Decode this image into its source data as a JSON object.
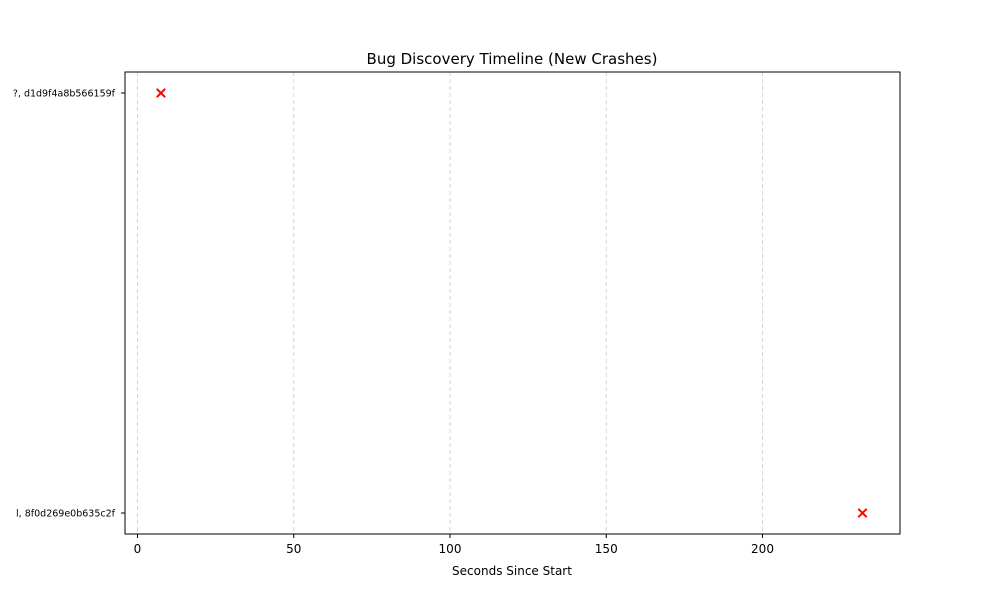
{
  "chart_data": {
    "type": "scatter",
    "title": "Bug Discovery Timeline (New Crashes)",
    "xlabel": "Seconds Since Start",
    "ylabel": "",
    "xlim": [
      -4,
      244
    ],
    "xticks": [
      0,
      50,
      100,
      150,
      200
    ],
    "grid": "x-dashed",
    "categories": [
      "?, d1d9f4a8b566159f",
      "l, 8f0d269e0b635c2f"
    ],
    "points": [
      {
        "category": "?, d1d9f4a8b566159f",
        "x": 7.5
      },
      {
        "category": "l, 8f0d269e0b635c2f",
        "x": 232
      }
    ],
    "marker": "x",
    "colors": {
      "marker": "#ff0000",
      "grid": "#d3d3d3",
      "axis": "#000000"
    }
  }
}
